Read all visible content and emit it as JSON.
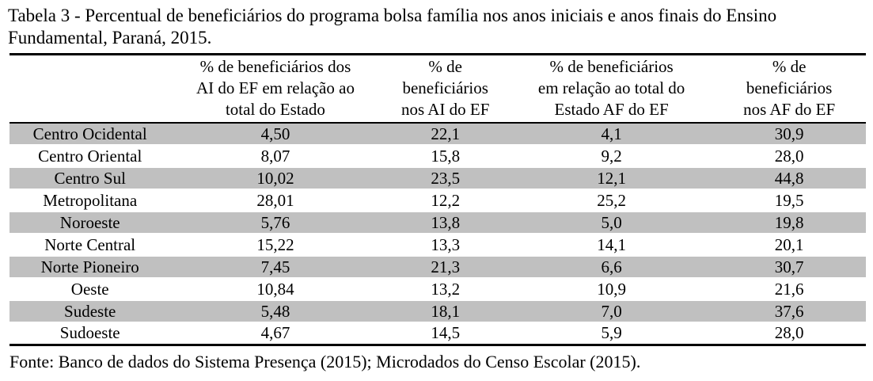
{
  "title": "Tabela 3 - Percentual de beneficiários do programa bolsa família nos anos iniciais e anos finais do Ensino Fundamental, Paraná, 2015.",
  "table": {
    "columns": [
      {
        "label": "",
        "lines": [
          "",
          "",
          ""
        ]
      },
      {
        "label": "% de beneficiários dos AI do EF em relação ao total do Estado",
        "lines": [
          "% de beneficiários dos",
          "AI do EF em relação ao",
          "total do Estado"
        ]
      },
      {
        "label": "% de beneficiários nos AI do EF",
        "lines": [
          "% de",
          "beneficiários",
          "nos AI do EF"
        ]
      },
      {
        "label": "% de beneficiários em relação ao total do Estado AF do EF",
        "lines": [
          "% de beneficiários",
          "em relação ao total do",
          "Estado AF do EF"
        ]
      },
      {
        "label": "% de beneficiários nos AF do EF",
        "lines": [
          "% de",
          "beneficiários",
          "nos AF do EF"
        ]
      }
    ],
    "rows": [
      {
        "region": "Centro Ocidental",
        "values": [
          "4,50",
          "22,1",
          "4,1",
          "30,9"
        ]
      },
      {
        "region": "Centro Oriental",
        "values": [
          "8,07",
          "15,8",
          "9,2",
          "28,0"
        ]
      },
      {
        "region": "Centro Sul",
        "values": [
          "10,02",
          "23,5",
          "12,1",
          "44,8"
        ]
      },
      {
        "region": "Metropolitana",
        "values": [
          "28,01",
          "12,2",
          "25,2",
          "19,5"
        ]
      },
      {
        "region": "Noroeste",
        "values": [
          "5,76",
          "13,8",
          "5,0",
          "19,8"
        ]
      },
      {
        "region": "Norte Central",
        "values": [
          "15,22",
          "13,3",
          "14,1",
          "20,1"
        ]
      },
      {
        "region": "Norte Pioneiro",
        "values": [
          "7,45",
          "21,3",
          "6,6",
          "30,7"
        ]
      },
      {
        "region": "Oeste",
        "values": [
          "10,84",
          "13,2",
          "10,9",
          "21,6"
        ]
      },
      {
        "region": "Sudeste",
        "values": [
          "5,48",
          "18,1",
          "7,0",
          "37,6"
        ]
      },
      {
        "region": "Sudoeste",
        "values": [
          "4,67",
          "14,5",
          "5,9",
          "28,0"
        ]
      }
    ]
  },
  "source": "Fonte: Banco de dados do Sistema Presença (2015); Microdados do Censo Escolar (2015).",
  "colors": {
    "row_shade": "#c0c0c0",
    "text": "#000000",
    "background": "#ffffff",
    "rule": "#000000"
  }
}
